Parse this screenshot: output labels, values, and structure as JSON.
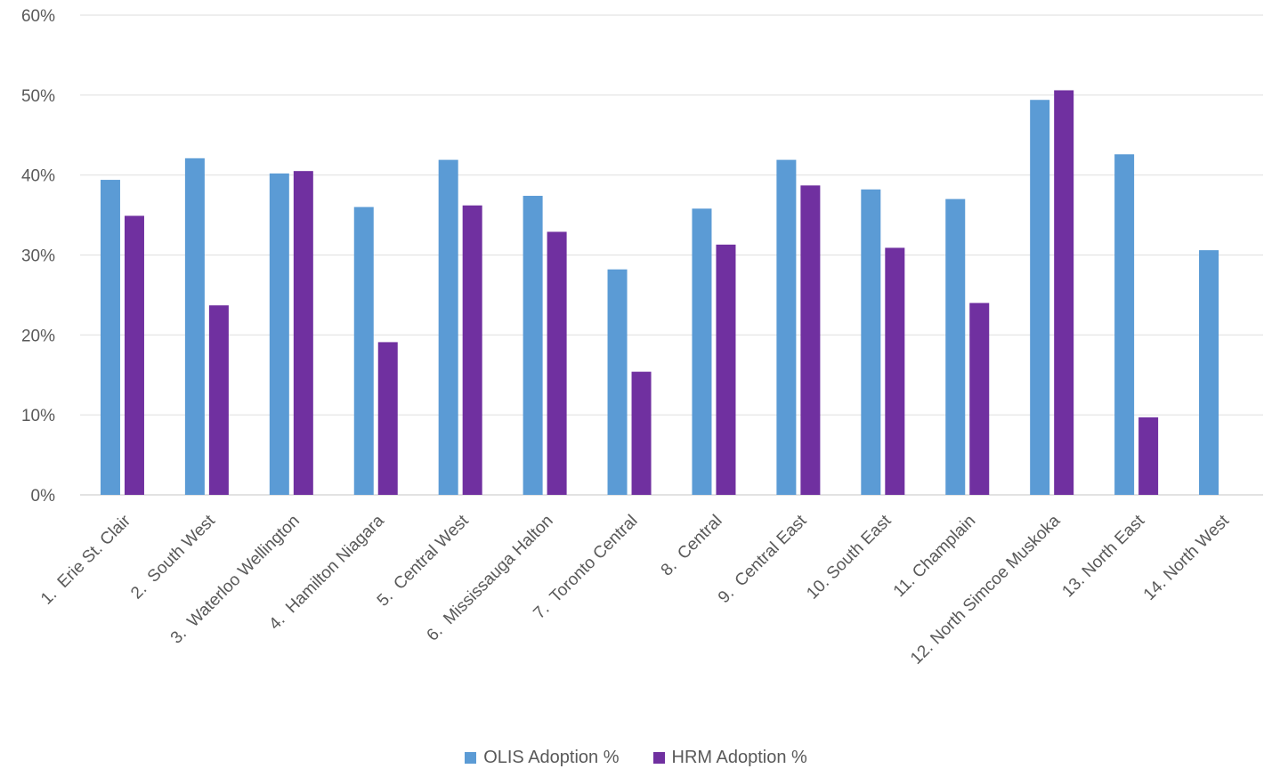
{
  "chart_data": {
    "type": "bar",
    "categories": [
      "1.  Erie St. Clair",
      "2.  South West",
      "3.  Waterloo Wellington",
      "4.  Hamilton Niagara",
      "5.  Central West",
      "6.  Mississauga Halton",
      "7.  Toronto Central",
      "8.  Central",
      "9.  Central East",
      "10. South East",
      "11. Champlain",
      "12. North Simcoe Muskoka",
      "13. North East",
      "14. North West"
    ],
    "series": [
      {
        "name": "OLIS Adoption %",
        "color": "#5B9BD5",
        "values": [
          39.4,
          42.1,
          40.2,
          36.0,
          41.9,
          37.4,
          28.2,
          35.8,
          41.9,
          38.2,
          37.0,
          49.4,
          42.6,
          30.6
        ]
      },
      {
        "name": "HRM Adoption %",
        "color": "#7030A0",
        "values": [
          34.9,
          23.7,
          40.5,
          19.1,
          36.2,
          32.9,
          15.4,
          31.3,
          38.7,
          30.9,
          24.0,
          50.6,
          9.7,
          null
        ]
      }
    ],
    "y_ticks": [
      "0%",
      "10%",
      "20%",
      "30%",
      "40%",
      "50%",
      "60%"
    ],
    "ylim": [
      0,
      60
    ],
    "grid": true,
    "legend_position": "bottom-center"
  }
}
